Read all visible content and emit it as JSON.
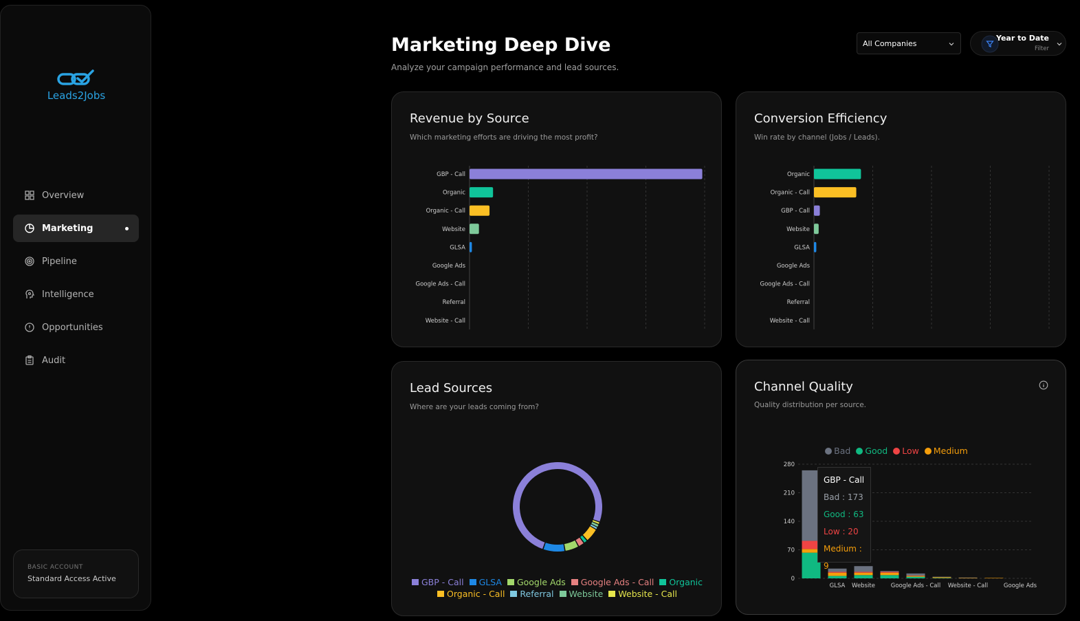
{
  "sidebar": {
    "logo": "Leads2Jobs",
    "nav": [
      "Overview",
      "Marketing",
      "Pipeline",
      "Intelligence",
      "Opportunities",
      "Audit"
    ],
    "active_index": 1,
    "account": {
      "tier": "BASIC ACCOUNT",
      "status": "Standard Access Active"
    }
  },
  "header": {
    "title": "Marketing Deep Dive",
    "subtitle": "Analyze your campaign performance and lead sources.",
    "company_select": "All Companies",
    "filter": {
      "label": "Year to Date",
      "sub": "Filter"
    }
  },
  "chart_data": [
    {
      "type": "hbar",
      "title": "Revenue by Source",
      "subtitle": "Which marketing efforts are driving the most profit?",
      "categories": [
        "GBP - Call",
        "Organic",
        "Organic - Call",
        "Website",
        "GLSA",
        "Google Ads",
        "Google Ads - Call",
        "Referral",
        "Website - Call"
      ],
      "values": [
        99,
        10,
        8.5,
        4,
        1,
        0,
        0,
        0,
        0
      ],
      "colors": [
        "#8b80d9",
        "#10c49a",
        "#fbbf24",
        "#7ec99a",
        "#1e88e5",
        "#a3d86b",
        "#e58080",
        "#7fc8e0",
        "#e6e64c"
      ],
      "xlim": [
        0,
        100
      ],
      "grid": true
    },
    {
      "type": "hbar",
      "title": "Conversion Efficiency",
      "subtitle": "Win rate by channel (Jobs / Leads).",
      "categories": [
        "Organic",
        "Organic - Call",
        "GBP - Call",
        "Website",
        "GLSA",
        "Google Ads",
        "Google Ads - Call",
        "Referral",
        "Website - Call"
      ],
      "values": [
        20,
        18,
        2.5,
        2,
        1,
        0,
        0,
        0,
        0
      ],
      "colors": [
        "#10c49a",
        "#fbbf24",
        "#8b80d9",
        "#7ec99a",
        "#1e88e5",
        "#a3d86b",
        "#e58080",
        "#7fc8e0",
        "#e6e64c"
      ],
      "xlim": [
        0,
        100
      ],
      "grid": true
    },
    {
      "type": "donut",
      "title": "Lead Sources",
      "subtitle": "Where are your leads coming from?",
      "categories": [
        "GBP - Call",
        "GLSA",
        "Google Ads",
        "Google Ads - Call",
        "Organic",
        "Organic - Call",
        "Referral",
        "Website",
        "Website - Call"
      ],
      "values": [
        265,
        28,
        18,
        8,
        5,
        18,
        3,
        4,
        3
      ],
      "colors": [
        "#8b80d9",
        "#1e88e5",
        "#a3d86b",
        "#e58080",
        "#10c49a",
        "#fbbf24",
        "#7fc8e0",
        "#7ec99a",
        "#e6e64c"
      ]
    },
    {
      "type": "stacked_bar",
      "title": "Channel Quality",
      "subtitle": "Quality distribution per source.",
      "categories": [
        null,
        "GLSA",
        "Website",
        null,
        "Google Ads - Call",
        null,
        "Website - Call",
        null,
        "Google Ads"
      ],
      "series": [
        {
          "name": "Bad",
          "color": "#6b7280",
          "values": [
            173,
            8,
            14,
            2,
            5,
            1,
            1,
            0,
            0
          ]
        },
        {
          "name": "Good",
          "color": "#10b981",
          "values": [
            63,
            6,
            8,
            8,
            4,
            1,
            0,
            0,
            0
          ]
        },
        {
          "name": "Low",
          "color": "#ef4444",
          "values": [
            20,
            2,
            2,
            2,
            1,
            0,
            0,
            0,
            0
          ]
        },
        {
          "name": "Medium",
          "color": "#f59e0b",
          "values": [
            9,
            8,
            6,
            6,
            2,
            2,
            1,
            1,
            0
          ]
        }
      ],
      "ylim": [
        0,
        280
      ],
      "yticks": [
        0,
        70,
        140,
        210,
        280
      ],
      "grid": true,
      "legend": "top",
      "tooltip": {
        "title": "GBP - Call",
        "lines": [
          "Bad : 173",
          "Good : 63",
          "Low : 20",
          "Medium : 9"
        ]
      }
    }
  ]
}
